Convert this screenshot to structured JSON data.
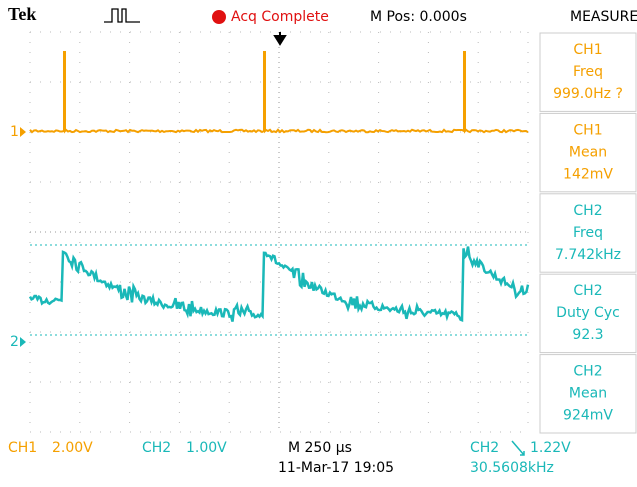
{
  "header": {
    "brand": "Tek",
    "status": "Acq Complete",
    "position": "M Pos: 0.000s",
    "panel_title": "MEASURE"
  },
  "measurements": [
    {
      "source": "CH1",
      "label": "Freq",
      "value": "999.0Hz ?"
    },
    {
      "source": "CH1",
      "label": "Mean",
      "value": "142mV"
    },
    {
      "source": "CH2",
      "label": "Freq",
      "value": "7.742kHz"
    },
    {
      "source": "CH2",
      "label": "Duty Cyc",
      "value": "92.3"
    },
    {
      "source": "CH2",
      "label": "Mean",
      "value": "924mV"
    }
  ],
  "markers": {
    "ch1": "1",
    "ch2": "2"
  },
  "footer": {
    "ch1": "CH1",
    "ch1_scale": "2.00V",
    "ch2": "CH2",
    "ch2_scale": "1.00V",
    "timebase": "M 250 µs",
    "date": "11-Mar-17 19:05",
    "trigger_source": "CH2",
    "trigger_level": "1.22V",
    "trigger_freq": "30.5608kHz"
  }
}
